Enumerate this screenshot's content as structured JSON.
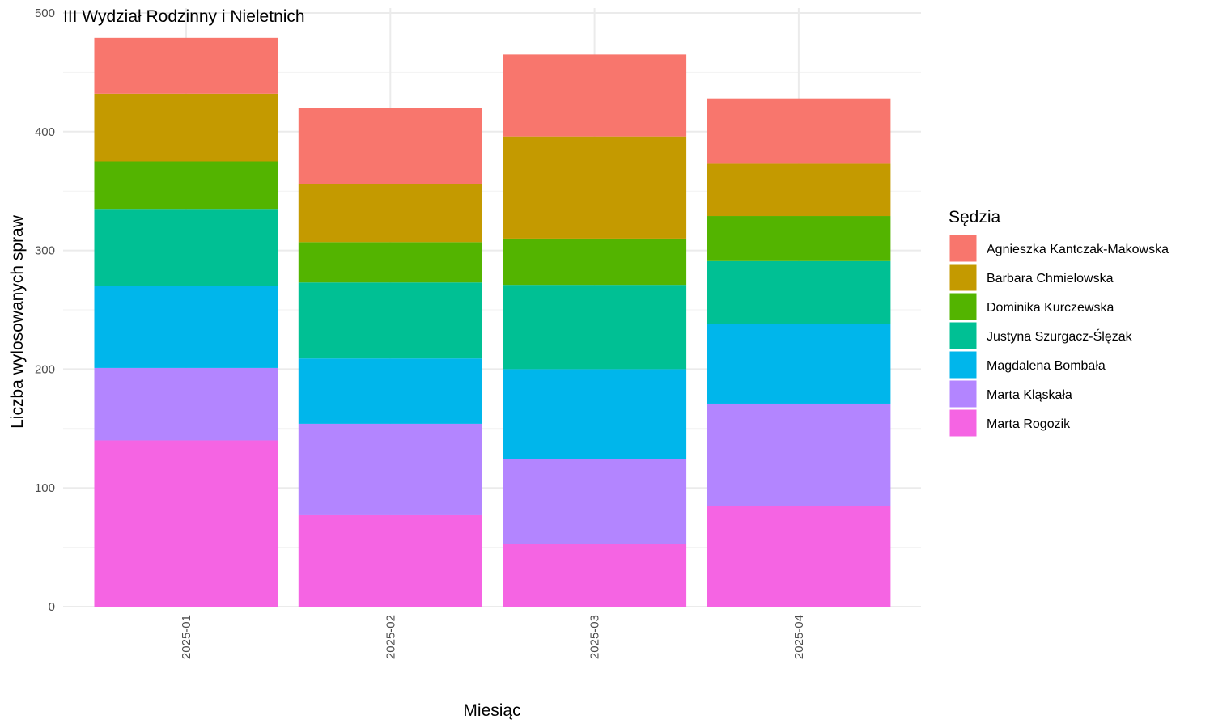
{
  "chart_data": {
    "type": "bar",
    "stacked": true,
    "title": "III Wydział Rodzinny i Nieletnich",
    "xlabel": "Miesiąc",
    "ylabel": "Liczba wylosowanych spraw",
    "ylim": [
      0,
      500
    ],
    "yticks": [
      0,
      100,
      200,
      300,
      400,
      500
    ],
    "grid": true,
    "legend_position": "right",
    "legend_title": "Sędzia",
    "categories": [
      "2025-01",
      "2025-02",
      "2025-03",
      "2025-04"
    ],
    "series": [
      {
        "name": "Marta Rogozik",
        "color": "#F564E3",
        "values": [
          140,
          77,
          53,
          85
        ]
      },
      {
        "name": "Marta Kląskała",
        "color": "#B385FF",
        "values": [
          61,
          77,
          71,
          86
        ]
      },
      {
        "name": "Magdalena Bombała",
        "color": "#00B6EB",
        "values": [
          69,
          55,
          76,
          67
        ]
      },
      {
        "name": "Justyna Szurgacz-Ślęzak",
        "color": "#00C094",
        "values": [
          65,
          64,
          71,
          53
        ]
      },
      {
        "name": "Dominika Kurczewska",
        "color": "#53B400",
        "values": [
          40,
          34,
          39,
          38
        ]
      },
      {
        "name": "Barbara Chmielowska",
        "color": "#C49A00",
        "values": [
          57,
          49,
          86,
          44
        ]
      },
      {
        "name": "Agnieszka Kantczak-Makowska",
        "color": "#F8766D",
        "values": [
          47,
          64,
          69,
          55
        ]
      }
    ],
    "legend_order": [
      "Agnieszka Kantczak-Makowska",
      "Barbara Chmielowska",
      "Dominika Kurczewska",
      "Justyna Szurgacz-Ślęzak",
      "Magdalena Bombała",
      "Marta Kląskała",
      "Marta Rogozik"
    ]
  }
}
